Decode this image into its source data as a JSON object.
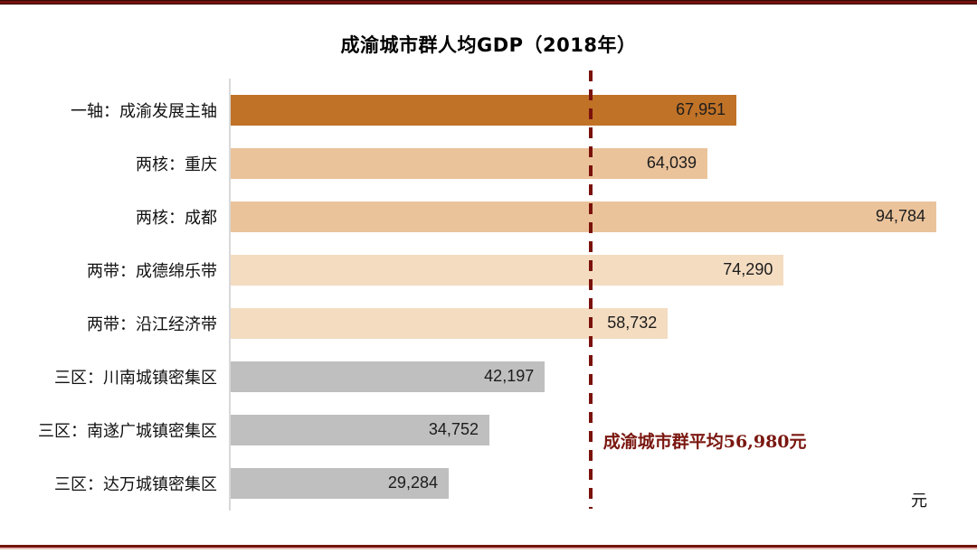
{
  "page": {
    "rule_color": "#74140C",
    "rule_accent_color": "#E6BCB6"
  },
  "chart_data": {
    "type": "bar",
    "orientation": "horizontal",
    "title": "成渝城市群人均GDP（2018年）",
    "xlabel": "",
    "ylabel": "",
    "unit_label": "元",
    "xlim": [
      0,
      94784
    ],
    "grid": false,
    "axis_line_color": "#D9D9D9",
    "value_label_position": "inside-end",
    "categories": [
      "一轴：成渝发展主轴",
      "两核：重庆",
      "两核：成都",
      "两带：成德绵乐带",
      "两带：沿江经济带",
      "三区：川南城镇密集区",
      "三区：南遂广城镇密集区",
      "三区：达万城镇密集区"
    ],
    "values": [
      67951,
      64039,
      94784,
      74290,
      58732,
      42197,
      34752,
      29284
    ],
    "value_labels": [
      "67,951",
      "64,039",
      "94,784",
      "74,290",
      "58,732",
      "42,197",
      "34,752",
      "29,284"
    ],
    "bar_colors": [
      "#C07227",
      "#EAC39B",
      "#EAC39B",
      "#F4DCC1",
      "#F4DCC1",
      "#BFBFBF",
      "#BFBFBF",
      "#BFBFBF"
    ],
    "average_line": {
      "value": 56980,
      "label": "成渝城市群平均56,980元",
      "color": "#7A120B",
      "text_color": "#7A1710",
      "style": "dashed",
      "x_fraction": 0.51
    }
  }
}
